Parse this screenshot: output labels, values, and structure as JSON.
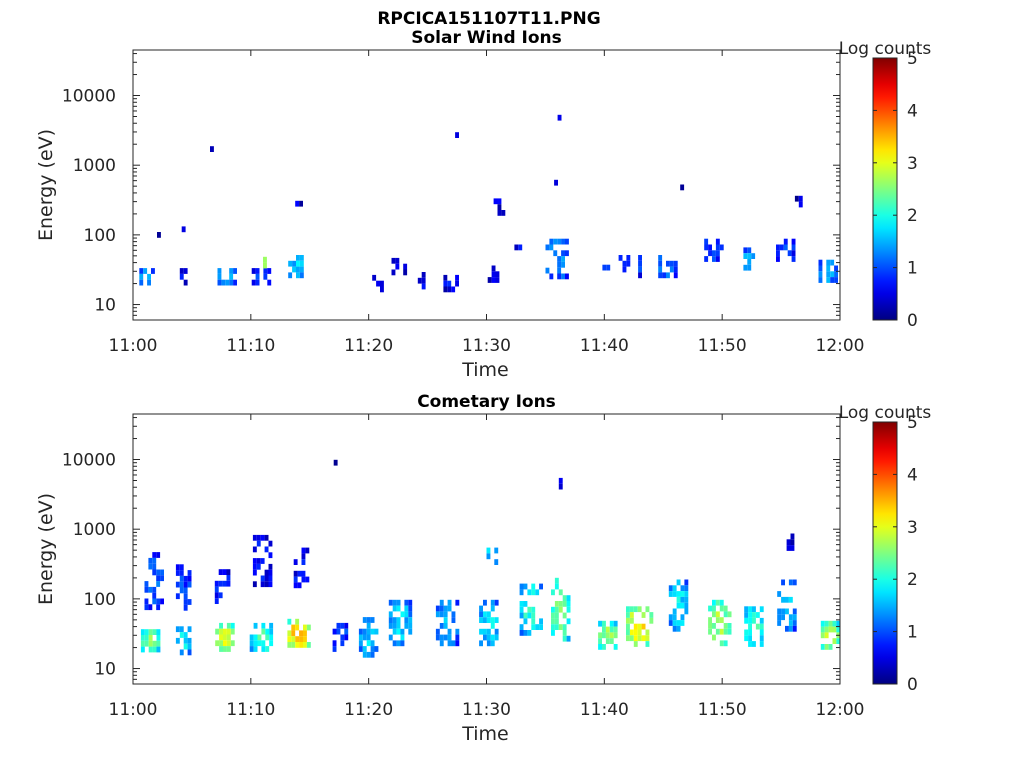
{
  "figure_title": "RPCICA151107T11.PNG",
  "chart_data": [
    {
      "type": "heatmap",
      "title": "Solar Wind Ions",
      "xlabel": "Time",
      "ylabel": "Energy (eV)",
      "xlim": [
        "11:00",
        "12:00"
      ],
      "x_ticks": [
        "11:00",
        "11:10",
        "11:20",
        "11:30",
        "11:40",
        "11:50",
        "12:00"
      ],
      "y_scale": "log",
      "ylim": [
        6,
        45000
      ],
      "y_ticks": [
        "10",
        "100",
        "1000",
        "10000"
      ],
      "colorbar": {
        "label": "Log counts",
        "range": [
          0,
          5
        ],
        "ticks": [
          "0",
          "1",
          "2",
          "3",
          "4",
          "5"
        ],
        "colormap": "jet"
      },
      "clusters": [
        {
          "t": 1.2,
          "e": 25,
          "w": 4,
          "h": 3,
          "lvl": 1.2,
          "dens": 0.7
        },
        {
          "t": 2.2,
          "e": 100,
          "w": 1,
          "h": 1,
          "lvl": 0.3,
          "dens": 1.0
        },
        {
          "t": 4.3,
          "e": 120,
          "w": 1,
          "h": 1,
          "lvl": 0.3,
          "dens": 1.0
        },
        {
          "t": 4.3,
          "e": 25,
          "w": 2,
          "h": 3,
          "lvl": 0.5,
          "dens": 0.6
        },
        {
          "t": 6.7,
          "e": 1700,
          "w": 1,
          "h": 1,
          "lvl": 0.3,
          "dens": 1.0
        },
        {
          "t": 8.0,
          "e": 25,
          "w": 5,
          "h": 3,
          "lvl": 1.3,
          "dens": 0.6
        },
        {
          "t": 10.9,
          "e": 25,
          "w": 5,
          "h": 3,
          "lvl": 0.8,
          "dens": 0.55
        },
        {
          "t": 11.2,
          "e": 40,
          "w": 1,
          "h": 2,
          "lvl": 2.4,
          "dens": 1.0
        },
        {
          "t": 14.0,
          "e": 35,
          "w": 5,
          "h": 4,
          "lvl": 1.4,
          "dens": 0.6
        },
        {
          "t": 14.1,
          "e": 280,
          "w": 2,
          "h": 1,
          "lvl": 0.4,
          "dens": 1.0
        },
        {
          "t": 20.8,
          "e": 20,
          "w": 3,
          "h": 3,
          "lvl": 0.4,
          "dens": 0.5
        },
        {
          "t": 22.6,
          "e": 35,
          "w": 4,
          "h": 3,
          "lvl": 0.5,
          "dens": 0.5
        },
        {
          "t": 24.5,
          "e": 22,
          "w": 2,
          "h": 3,
          "lvl": 0.6,
          "dens": 0.5
        },
        {
          "t": 27.5,
          "e": 2700,
          "w": 1,
          "h": 1,
          "lvl": 0.3,
          "dens": 1.0
        },
        {
          "t": 27.0,
          "e": 20,
          "w": 4,
          "h": 3,
          "lvl": 0.5,
          "dens": 0.5
        },
        {
          "t": 30.6,
          "e": 30,
          "w": 3,
          "h": 4,
          "lvl": 0.5,
          "dens": 0.5
        },
        {
          "t": 31.1,
          "e": 250,
          "w": 3,
          "h": 3,
          "lvl": 0.4,
          "dens": 0.5
        },
        {
          "t": 32.7,
          "e": 60,
          "w": 2,
          "h": 2,
          "lvl": 0.5,
          "dens": 0.6
        },
        {
          "t": 36.2,
          "e": 4800,
          "w": 1,
          "h": 1,
          "lvl": 0.3,
          "dens": 1.0
        },
        {
          "t": 35.9,
          "e": 560,
          "w": 1,
          "h": 1,
          "lvl": 0.3,
          "dens": 1.0
        },
        {
          "t": 36.0,
          "e": 45,
          "w": 6,
          "h": 7,
          "lvl": 1.2,
          "dens": 0.5
        },
        {
          "t": 40.0,
          "e": 28,
          "w": 3,
          "h": 3,
          "lvl": 1.1,
          "dens": 0.6
        },
        {
          "t": 42.2,
          "e": 35,
          "w": 6,
          "h": 4,
          "lvl": 0.9,
          "dens": 0.5
        },
        {
          "t": 46.6,
          "e": 480,
          "w": 1,
          "h": 1,
          "lvl": 0.3,
          "dens": 1.0
        },
        {
          "t": 45.4,
          "e": 35,
          "w": 5,
          "h": 4,
          "lvl": 1.1,
          "dens": 0.5
        },
        {
          "t": 49.3,
          "e": 60,
          "w": 5,
          "h": 4,
          "lvl": 0.9,
          "dens": 0.5
        },
        {
          "t": 52.3,
          "e": 45,
          "w": 3,
          "h": 4,
          "lvl": 1.3,
          "dens": 0.5
        },
        {
          "t": 55.4,
          "e": 60,
          "w": 5,
          "h": 4,
          "lvl": 0.8,
          "dens": 0.5
        },
        {
          "t": 56.5,
          "e": 300,
          "w": 2,
          "h": 2,
          "lvl": 0.3,
          "dens": 0.6
        },
        {
          "t": 59.0,
          "e": 30,
          "w": 5,
          "h": 4,
          "lvl": 1.3,
          "dens": 0.6
        }
      ]
    },
    {
      "type": "heatmap",
      "title": "Cometary Ions",
      "xlabel": "Time",
      "ylabel": "Energy (eV)",
      "xlim": [
        "11:00",
        "12:00"
      ],
      "x_ticks": [
        "11:00",
        "11:10",
        "11:20",
        "11:30",
        "11:40",
        "11:50",
        "12:00"
      ],
      "y_scale": "log",
      "ylim": [
        6,
        45000
      ],
      "y_ticks": [
        "10",
        "100",
        "1000",
        "10000"
      ],
      "colorbar": {
        "label": "Log counts",
        "range": [
          0,
          5
        ],
        "ticks": [
          "0",
          "1",
          "2",
          "3",
          "4",
          "5"
        ],
        "colormap": "jet"
      },
      "clusters": [
        {
          "t": 1.5,
          "e": 25,
          "w": 5,
          "h": 4,
          "lvl": 2.2,
          "dens": 0.8
        },
        {
          "t": 1.8,
          "e": 180,
          "w": 5,
          "h": 10,
          "lvl": 0.9,
          "dens": 0.55
        },
        {
          "t": 4.3,
          "e": 25,
          "w": 4,
          "h": 5,
          "lvl": 1.6,
          "dens": 0.7
        },
        {
          "t": 4.3,
          "e": 160,
          "w": 4,
          "h": 9,
          "lvl": 0.8,
          "dens": 0.5
        },
        {
          "t": 7.8,
          "e": 28,
          "w": 5,
          "h": 5,
          "lvl": 2.7,
          "dens": 0.8
        },
        {
          "t": 7.6,
          "e": 150,
          "w": 4,
          "h": 6,
          "lvl": 0.7,
          "dens": 0.5
        },
        {
          "t": 10.9,
          "e": 28,
          "w": 6,
          "h": 5,
          "lvl": 2.0,
          "dens": 0.7
        },
        {
          "t": 11.0,
          "e": 350,
          "w": 5,
          "h": 9,
          "lvl": 0.6,
          "dens": 0.45
        },
        {
          "t": 14.1,
          "e": 32,
          "w": 6,
          "h": 5,
          "lvl": 3.1,
          "dens": 0.8
        },
        {
          "t": 14.3,
          "e": 230,
          "w": 4,
          "h": 9,
          "lvl": 0.6,
          "dens": 0.45
        },
        {
          "t": 17.2,
          "e": 9000,
          "w": 1,
          "h": 1,
          "lvl": 0.3,
          "dens": 1.0
        },
        {
          "t": 17.6,
          "e": 28,
          "w": 4,
          "h": 5,
          "lvl": 0.9,
          "dens": 0.6
        },
        {
          "t": 20.0,
          "e": 28,
          "w": 5,
          "h": 7,
          "lvl": 1.4,
          "dens": 0.6
        },
        {
          "t": 22.7,
          "e": 45,
          "w": 6,
          "h": 8,
          "lvl": 1.5,
          "dens": 0.6
        },
        {
          "t": 26.7,
          "e": 45,
          "w": 6,
          "h": 8,
          "lvl": 1.3,
          "dens": 0.55
        },
        {
          "t": 30.2,
          "e": 45,
          "w": 5,
          "h": 8,
          "lvl": 1.6,
          "dens": 0.55
        },
        {
          "t": 30.5,
          "e": 450,
          "w": 3,
          "h": 4,
          "lvl": 1.5,
          "dens": 0.6
        },
        {
          "t": 33.8,
          "e": 70,
          "w": 6,
          "h": 9,
          "lvl": 1.8,
          "dens": 0.55
        },
        {
          "t": 36.3,
          "e": 70,
          "w": 5,
          "h": 11,
          "lvl": 2.2,
          "dens": 0.6
        },
        {
          "t": 36.3,
          "e": 4500,
          "w": 1,
          "h": 2,
          "lvl": 0.3,
          "dens": 1.0
        },
        {
          "t": 40.3,
          "e": 30,
          "w": 5,
          "h": 5,
          "lvl": 2.3,
          "dens": 0.75
        },
        {
          "t": 43.0,
          "e": 40,
          "w": 7,
          "h": 7,
          "lvl": 2.8,
          "dens": 0.65
        },
        {
          "t": 46.3,
          "e": 80,
          "w": 5,
          "h": 9,
          "lvl": 1.6,
          "dens": 0.55
        },
        {
          "t": 49.8,
          "e": 45,
          "w": 6,
          "h": 8,
          "lvl": 2.4,
          "dens": 0.6
        },
        {
          "t": 52.7,
          "e": 40,
          "w": 5,
          "h": 7,
          "lvl": 2.0,
          "dens": 0.6
        },
        {
          "t": 55.5,
          "e": 80,
          "w": 5,
          "h": 9,
          "lvl": 1.4,
          "dens": 0.55
        },
        {
          "t": 55.8,
          "e": 650,
          "w": 2,
          "h": 3,
          "lvl": 0.4,
          "dens": 0.6
        },
        {
          "t": 59.2,
          "e": 30,
          "w": 5,
          "h": 5,
          "lvl": 2.5,
          "dens": 0.7
        }
      ]
    }
  ]
}
